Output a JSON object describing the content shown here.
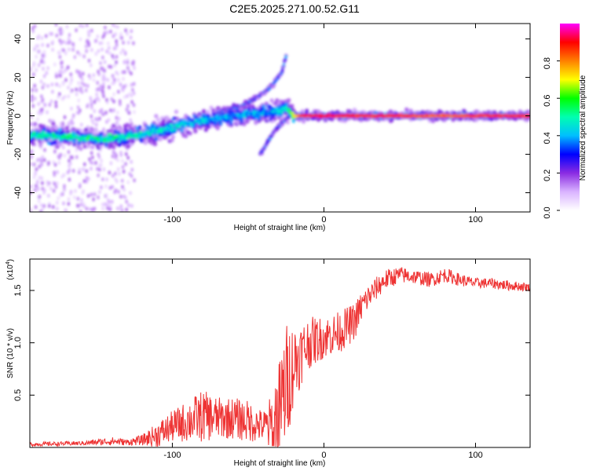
{
  "title": "C2E5.2025.271.00.52.G11",
  "chart_data": [
    {
      "type": "heatmap",
      "name": "spectrogram",
      "xlabel": "Height of straight line (km)",
      "ylabel": "Frequency (Hz)",
      "xlim": [
        -194,
        136
      ],
      "ylim": [
        -50,
        48
      ],
      "xticks": [
        -100,
        0,
        100
      ],
      "yticks": [
        -40,
        -20,
        0,
        20,
        40
      ],
      "colorbar": {
        "label": "Normalized spectral amplitude",
        "range": [
          0.0,
          1.0
        ],
        "ticks": [
          "0.0",
          "0.2",
          "0.4",
          "0.6",
          "0.8"
        ],
        "tick_values": [
          0.0,
          0.2,
          0.4,
          0.6,
          0.8
        ],
        "colors": [
          "#ffffff",
          "#d9b3ff",
          "#8a2be2",
          "#0000ff",
          "#00bfff",
          "#00ffb0",
          "#00ff00",
          "#ffff00",
          "#ff8000",
          "#ff0000",
          "#ff00ff"
        ]
      },
      "main_track": {
        "x": [
          -194,
          -170,
          -150,
          -130,
          -110,
          -90,
          -70,
          -50,
          -35,
          -25,
          -20,
          -15,
          0,
          20,
          50,
          80,
          110,
          136
        ],
        "freq": [
          -10,
          -11,
          -12,
          -11,
          -8,
          -4,
          -1,
          1,
          2,
          4,
          0,
          0,
          0,
          0,
          0,
          0,
          0,
          0
        ],
        "amplitude": [
          0.55,
          0.6,
          0.6,
          0.55,
          0.5,
          0.5,
          0.45,
          0.45,
          0.45,
          0.5,
          0.7,
          0.9,
          0.95,
          0.9,
          0.9,
          0.85,
          0.9,
          0.9
        ]
      },
      "upper_branch": {
        "x": [
          -70,
          -55,
          -45,
          -35,
          -28,
          -25
        ],
        "freq": [
          2,
          5,
          9,
          15,
          22,
          31
        ]
      },
      "lower_branch": {
        "x": [
          -42,
          -38,
          -33,
          -28,
          -23
        ],
        "freq": [
          -20,
          -15,
          -8,
          -4,
          0
        ]
      },
      "scatter_band_x": [
        -194,
        -125
      ]
    },
    {
      "type": "line",
      "name": "snr",
      "xlabel": "Height of straight line (km)",
      "ylabel": "SNR (10 * v/v)",
      "scale_label": "(x10",
      "scale_exponent": "4",
      "xlim": [
        -194,
        136
      ],
      "ylim": [
        0.0,
        1.8
      ],
      "xticks": [
        -100,
        0,
        100
      ],
      "yticks": [
        0.5,
        1.0,
        1.5
      ],
      "ytick_labels": [
        "0.5",
        "1.0",
        "1.5"
      ],
      "color": "#ee3333",
      "series": [
        {
          "name": "SNR",
          "x": [
            -194,
            -160,
            -150,
            -140,
            -130,
            -120,
            -110,
            -100,
            -90,
            -80,
            -70,
            -60,
            -50,
            -40,
            -35,
            -30,
            -25,
            -20,
            -15,
            -10,
            0,
            10,
            20,
            25,
            30,
            40,
            50,
            60,
            70,
            80,
            90,
            100,
            110,
            120,
            136
          ],
          "values": [
            0.03,
            0.04,
            0.05,
            0.06,
            0.05,
            0.07,
            0.12,
            0.2,
            0.25,
            0.3,
            0.28,
            0.28,
            0.25,
            0.2,
            0.2,
            0.3,
            0.6,
            0.8,
            0.9,
            1.0,
            1.05,
            1.1,
            1.2,
            1.35,
            1.45,
            1.6,
            1.65,
            1.63,
            1.6,
            1.65,
            1.6,
            1.57,
            1.57,
            1.55,
            1.53
          ],
          "noise": [
            0.02,
            0.02,
            0.03,
            0.04,
            0.03,
            0.05,
            0.12,
            0.15,
            0.2,
            0.25,
            0.2,
            0.2,
            0.2,
            0.15,
            0.3,
            0.5,
            0.6,
            0.4,
            0.3,
            0.25,
            0.2,
            0.2,
            0.18,
            0.15,
            0.12,
            0.1,
            0.08,
            0.07,
            0.07,
            0.07,
            0.06,
            0.05,
            0.05,
            0.05,
            0.04
          ]
        }
      ]
    }
  ]
}
